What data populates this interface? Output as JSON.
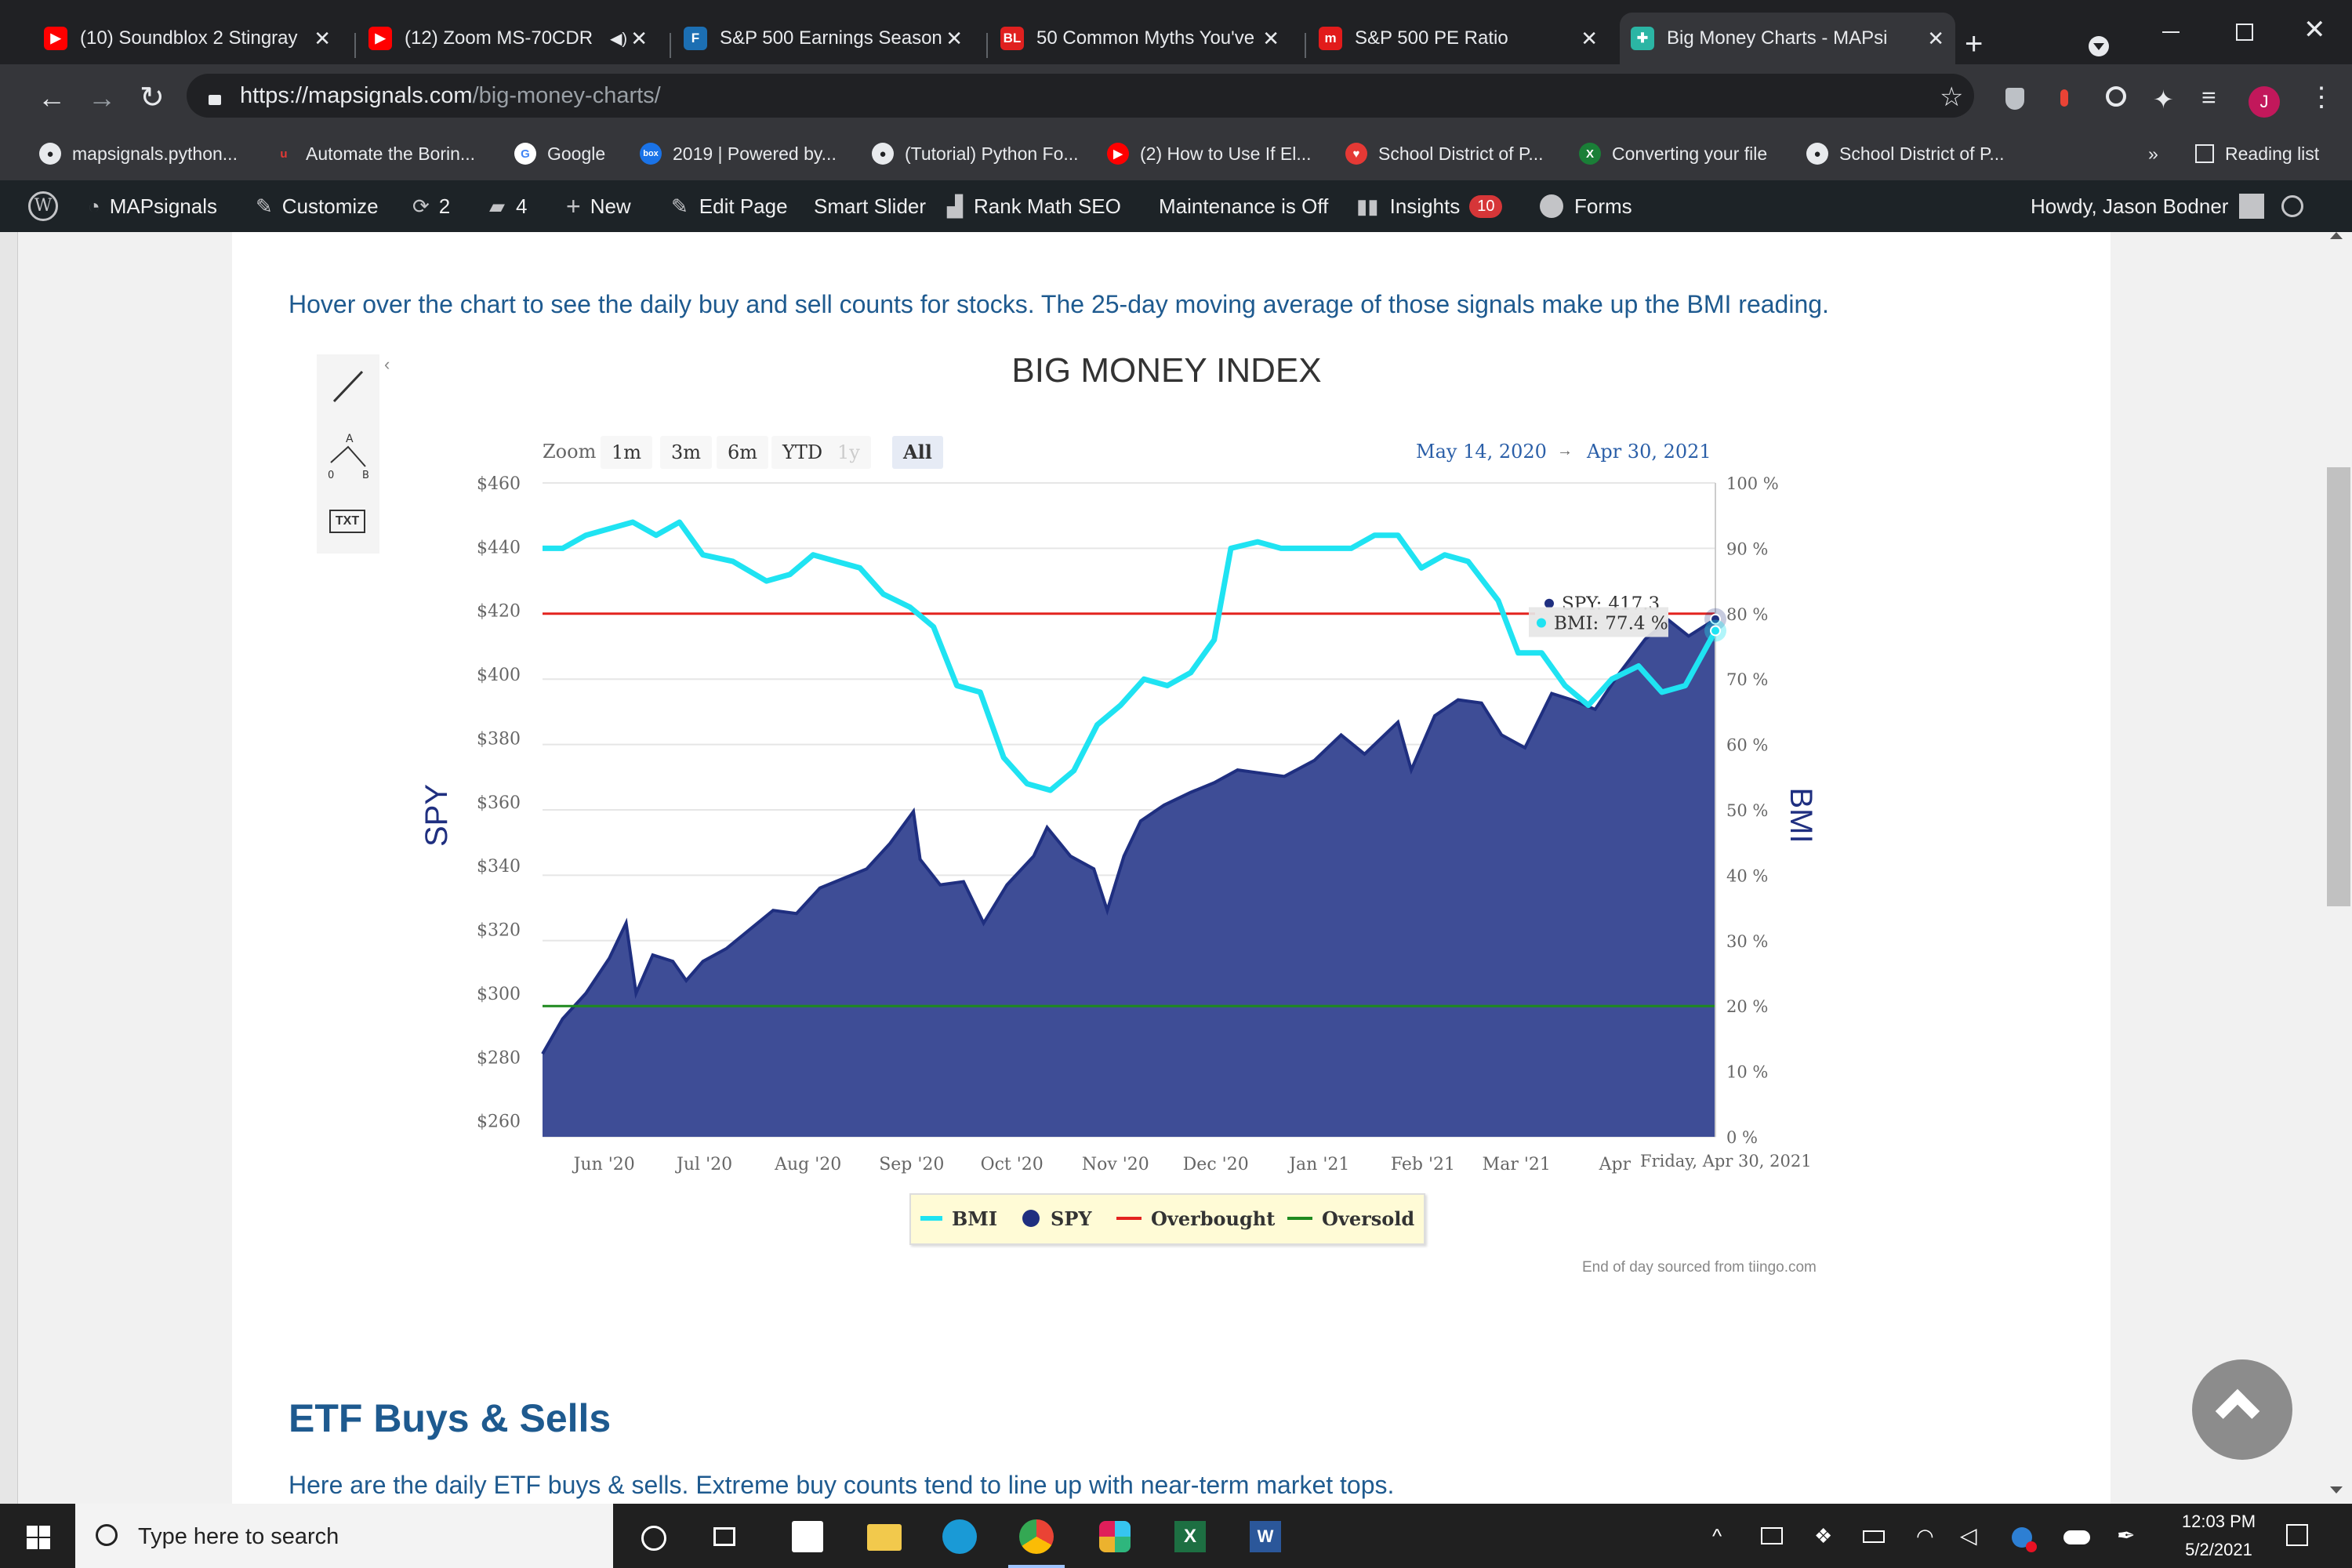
{
  "browser": {
    "tabs": [
      {
        "title": "(10) Soundblox 2 Stingray",
        "icon": "youtube-icon",
        "color": "#ff0000"
      },
      {
        "title": "(12) Zoom MS-70CDR",
        "icon": "youtube-icon",
        "color": "#ff0000",
        "audio": true
      },
      {
        "title": "S&P 500 Earnings Season",
        "icon": "f-icon",
        "color": "#1c6fb3"
      },
      {
        "title": "50 Common Myths You've",
        "icon": "bl-icon",
        "color": "#e0201f"
      },
      {
        "title": "S&P 500 PE Ratio",
        "icon": "m-icon",
        "color": "#e21b1b"
      },
      {
        "title": "Big Money Charts - MAPsi",
        "icon": "mapsignals-icon",
        "color": "#2bb5a4",
        "active": true
      }
    ],
    "url_host": "https://mapsignals.com",
    "url_path": "/big-money-charts/",
    "profile_initial": "J",
    "bookmarks": [
      "mapsignals.python...",
      "Automate the Borin...",
      "Google",
      "2019 | Powered by...",
      "(Tutorial) Python Fo...",
      "(2) How to Use If El...",
      "School District of P...",
      "Converting your file",
      "School District of P..."
    ],
    "more_bookmarks": "»",
    "reading_list": "Reading list"
  },
  "wp_admin": {
    "site": "MAPsignals",
    "customize": "Customize",
    "updates": "2",
    "comments": "4",
    "new": "New",
    "edit_page": "Edit Page",
    "smart_slider": "Smart Slider",
    "rank_math": "Rank Math SEO",
    "maintenance": "Maintenance is Off",
    "insights": "Insights",
    "insights_badge": "10",
    "forms": "Forms",
    "howdy": "Howdy, Jason Bodner"
  },
  "page": {
    "intro": "Hover over the chart to see the daily buy and sell counts for stocks. The 25-day moving average of those signals make up the BMI reading.",
    "etf_heading": "ETF Buys & Sells",
    "etf_text": "Here are the daily ETF buys & sells. Extreme buy counts tend to line up with near-term market tops.",
    "source_note": "End of day sourced from tiingo.com"
  },
  "chart_tools": {
    "text_tool": "TXT",
    "collapse": "‹"
  },
  "range_selector": {
    "zoom_label": "Zoom",
    "buttons": [
      "1m",
      "3m",
      "6m",
      "YTD",
      "1y",
      "All"
    ],
    "selected": "All",
    "disabled": "1y",
    "from": "May 14, 2020",
    "dash": "→",
    "to": "Apr 30, 2021"
  },
  "chart_data": {
    "type": "line",
    "title": "BIG MONEY INDEX",
    "ylabel_left": "SPY",
    "ylabel_right": "BMI",
    "y_left_ticks": [
      "$460",
      "$440",
      "$420",
      "$400",
      "$380",
      "$360",
      "$340",
      "$320",
      "$300",
      "$280",
      "$260"
    ],
    "y_left_range": [
      255,
      460
    ],
    "y_right_ticks": [
      "100 %",
      "90 %",
      "80 %",
      "70 %",
      "60 %",
      "50 %",
      "40 %",
      "30 %",
      "20 %",
      "10 %",
      "0 %"
    ],
    "y_right_range": [
      0,
      100
    ],
    "x_ticks": [
      "Jun '20",
      "Jul '20",
      "Aug '20",
      "Sep '20",
      "Oct '20",
      "Nov '20",
      "Dec '20",
      "Jan '21",
      "Feb '21",
      "Mar '21",
      "Apr '"
    ],
    "x_tick_dates": [
      "2020-06-01",
      "2020-07-01",
      "2020-08-01",
      "2020-09-01",
      "2020-10-01",
      "2020-11-01",
      "2020-12-01",
      "2021-01-01",
      "2021-02-01",
      "2021-03-01",
      "2021-04-01"
    ],
    "x_range": [
      "2020-05-14",
      "2021-04-30"
    ],
    "crosshair_label": "Friday, Apr 30, 2021",
    "tooltip": {
      "spy_label": "SPY:",
      "spy_value": "417.3",
      "bmi_label": "BMI:",
      "bmi_value": "77.4 %"
    },
    "overbought_level": 80,
    "oversold_level": 20,
    "series": [
      {
        "name": "SPY",
        "kind": "area",
        "axis": "left",
        "color": "#1f2f80",
        "points": [
          [
            "2020-05-14",
            281
          ],
          [
            "2020-05-20",
            292
          ],
          [
            "2020-05-27",
            300
          ],
          [
            "2020-06-03",
            311
          ],
          [
            "2020-06-08",
            322
          ],
          [
            "2020-06-11",
            300
          ],
          [
            "2020-06-16",
            312
          ],
          [
            "2020-06-22",
            310
          ],
          [
            "2020-06-26",
            304
          ],
          [
            "2020-07-01",
            310
          ],
          [
            "2020-07-08",
            314
          ],
          [
            "2020-07-15",
            320
          ],
          [
            "2020-07-22",
            326
          ],
          [
            "2020-07-29",
            325
          ],
          [
            "2020-08-05",
            333
          ],
          [
            "2020-08-12",
            336
          ],
          [
            "2020-08-19",
            339
          ],
          [
            "2020-08-26",
            347
          ],
          [
            "2020-09-02",
            357
          ],
          [
            "2020-09-04",
            342
          ],
          [
            "2020-09-10",
            334
          ],
          [
            "2020-09-17",
            335
          ],
          [
            "2020-09-23",
            322
          ],
          [
            "2020-09-30",
            334
          ],
          [
            "2020-10-08",
            343
          ],
          [
            "2020-10-12",
            352
          ],
          [
            "2020-10-19",
            343
          ],
          [
            "2020-10-26",
            339
          ],
          [
            "2020-10-30",
            326
          ],
          [
            "2020-11-04",
            343
          ],
          [
            "2020-11-09",
            354
          ],
          [
            "2020-11-16",
            359
          ],
          [
            "2020-11-24",
            363
          ],
          [
            "2020-12-01",
            366
          ],
          [
            "2020-12-08",
            370
          ],
          [
            "2020-12-15",
            369
          ],
          [
            "2020-12-22",
            368
          ],
          [
            "2020-12-31",
            373
          ],
          [
            "2021-01-08",
            381
          ],
          [
            "2021-01-15",
            375
          ],
          [
            "2021-01-25",
            385
          ],
          [
            "2021-01-29",
            370
          ],
          [
            "2021-02-05",
            387
          ],
          [
            "2021-02-12",
            392
          ],
          [
            "2021-02-19",
            391
          ],
          [
            "2021-02-25",
            381
          ],
          [
            "2021-03-04",
            377
          ],
          [
            "2021-03-12",
            394
          ],
          [
            "2021-03-18",
            392
          ],
          [
            "2021-03-25",
            389
          ],
          [
            "2021-04-01",
            400
          ],
          [
            "2021-04-09",
            411
          ],
          [
            "2021-04-16",
            417
          ],
          [
            "2021-04-22",
            412
          ],
          [
            "2021-04-30",
            417.3
          ]
        ]
      },
      {
        "name": "BMI",
        "kind": "line",
        "axis": "right",
        "color": "#1fe3f2",
        "points": [
          [
            "2020-05-14",
            90
          ],
          [
            "2020-05-20",
            90
          ],
          [
            "2020-05-27",
            92
          ],
          [
            "2020-06-03",
            93
          ],
          [
            "2020-06-10",
            94
          ],
          [
            "2020-06-17",
            92
          ],
          [
            "2020-06-24",
            94
          ],
          [
            "2020-07-01",
            89
          ],
          [
            "2020-07-10",
            88
          ],
          [
            "2020-07-20",
            85
          ],
          [
            "2020-07-27",
            86
          ],
          [
            "2020-08-03",
            89
          ],
          [
            "2020-08-10",
            88
          ],
          [
            "2020-08-17",
            87
          ],
          [
            "2020-08-24",
            83
          ],
          [
            "2020-09-01",
            81
          ],
          [
            "2020-09-08",
            78
          ],
          [
            "2020-09-15",
            69
          ],
          [
            "2020-09-22",
            68
          ],
          [
            "2020-09-29",
            58
          ],
          [
            "2020-10-06",
            54
          ],
          [
            "2020-10-13",
            53
          ],
          [
            "2020-10-20",
            56
          ],
          [
            "2020-10-27",
            63
          ],
          [
            "2020-11-03",
            66
          ],
          [
            "2020-11-10",
            70
          ],
          [
            "2020-11-17",
            69
          ],
          [
            "2020-11-24",
            71
          ],
          [
            "2020-12-01",
            76
          ],
          [
            "2020-12-06",
            90
          ],
          [
            "2020-12-14",
            91
          ],
          [
            "2020-12-21",
            90
          ],
          [
            "2020-12-31",
            90
          ],
          [
            "2021-01-11",
            90
          ],
          [
            "2021-01-18",
            92
          ],
          [
            "2021-01-25",
            92
          ],
          [
            "2021-02-01",
            87
          ],
          [
            "2021-02-08",
            89
          ],
          [
            "2021-02-15",
            88
          ],
          [
            "2021-02-24",
            82
          ],
          [
            "2021-03-02",
            74
          ],
          [
            "2021-03-09",
            74
          ],
          [
            "2021-03-16",
            69
          ],
          [
            "2021-03-23",
            66
          ],
          [
            "2021-03-30",
            70
          ],
          [
            "2021-04-07",
            72
          ],
          [
            "2021-04-14",
            68
          ],
          [
            "2021-04-21",
            69
          ],
          [
            "2021-04-30",
            77.4
          ]
        ]
      },
      {
        "name": "Overbought",
        "kind": "line",
        "axis": "right",
        "color": "#e3231f"
      },
      {
        "name": "Oversold",
        "kind": "line",
        "axis": "right",
        "color": "#1f8a1f"
      }
    ],
    "legend": [
      "BMI",
      "SPY",
      "Overbought",
      "Oversold"
    ],
    "legend_placement": "bottom-center"
  },
  "taskbar": {
    "search_placeholder": "Type here to search",
    "time": "12:03 PM",
    "date": "5/2/2021"
  }
}
